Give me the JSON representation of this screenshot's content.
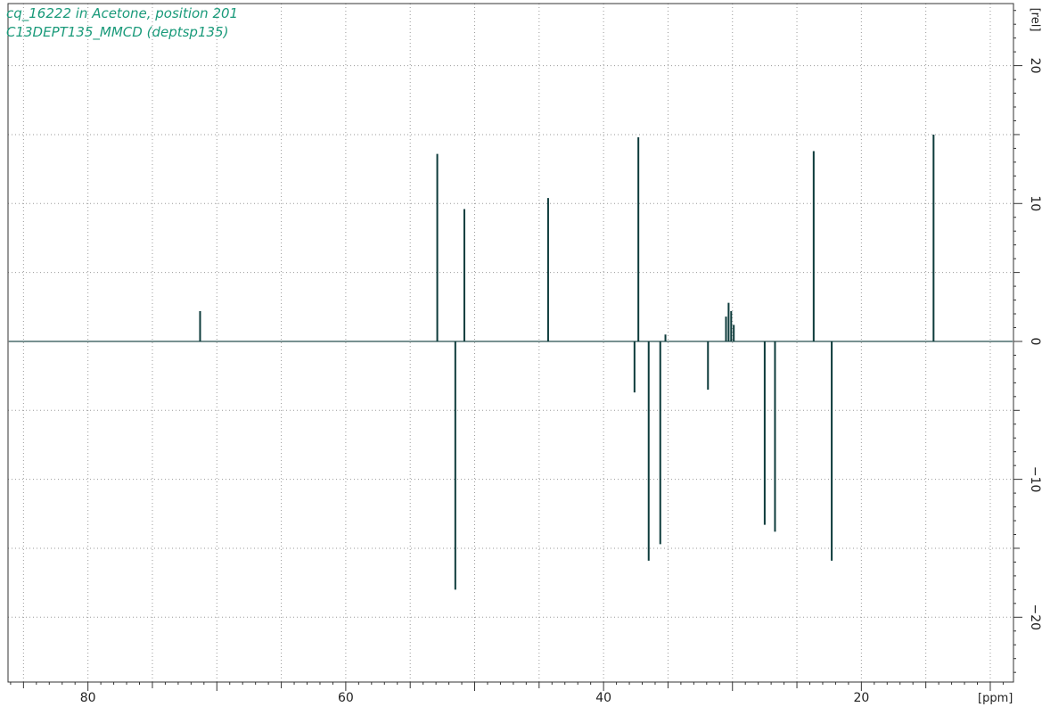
{
  "header": {
    "title_line1": "cq_16222 in Acetone, position 201",
    "title_line2": "C13DEPT135_MMCD (deptsp135)"
  },
  "colors": {
    "spectrum": "#0d3b3b",
    "title": "#1a9a7a",
    "grid": "#9a9a9a",
    "axis": "#333333"
  },
  "chart_data": {
    "type": "line",
    "title": "cq_16222 in Acetone, position 201",
    "subtitle": "C13DEPT135_MMCD (deptsp135)",
    "xlabel": "[ppm]",
    "ylabel": "[rel]",
    "x_reversed": true,
    "xlim": [
      86.2,
      8.2
    ],
    "ylim": [
      -24.7,
      24.5
    ],
    "grid": "dotted",
    "x_ticks": [
      80,
      60,
      40,
      20
    ],
    "y_ticks": [
      20,
      10,
      0,
      -10,
      -20
    ],
    "y_tick_labels": [
      "20",
      "10",
      "0",
      "−10",
      "−20"
    ],
    "peaks": [
      {
        "ppm": 71.3,
        "intensity": 2.2
      },
      {
        "ppm": 52.9,
        "intensity": 13.6
      },
      {
        "ppm": 51.5,
        "intensity": -18.0
      },
      {
        "ppm": 50.8,
        "intensity": 9.6
      },
      {
        "ppm": 44.3,
        "intensity": 10.4
      },
      {
        "ppm": 37.6,
        "intensity": -3.7
      },
      {
        "ppm": 37.3,
        "intensity": 14.8
      },
      {
        "ppm": 36.5,
        "intensity": -15.9
      },
      {
        "ppm": 35.6,
        "intensity": -14.7
      },
      {
        "ppm": 35.2,
        "intensity": 0.5
      },
      {
        "ppm": 31.9,
        "intensity": -3.5
      },
      {
        "ppm": 30.5,
        "intensity": 1.8
      },
      {
        "ppm": 30.3,
        "intensity": 2.8
      },
      {
        "ppm": 30.1,
        "intensity": 2.2
      },
      {
        "ppm": 29.9,
        "intensity": 1.2
      },
      {
        "ppm": 27.5,
        "intensity": -13.3
      },
      {
        "ppm": 26.7,
        "intensity": -13.8
      },
      {
        "ppm": 23.7,
        "intensity": 13.8
      },
      {
        "ppm": 22.3,
        "intensity": -15.9
      },
      {
        "ppm": 14.4,
        "intensity": 15.0
      }
    ]
  }
}
